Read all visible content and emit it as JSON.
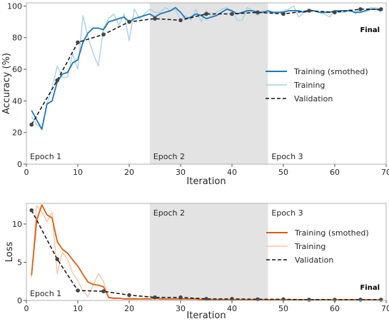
{
  "chart_data": [
    {
      "type": "line",
      "xlabel": "Iteration",
      "ylabel": "Accuracy (%)",
      "xlim": [
        0,
        70
      ],
      "ylim": [
        0,
        102
      ],
      "xticks": [
        "0",
        "10",
        "20",
        "30",
        "40",
        "50",
        "60",
        "70"
      ],
      "yticks": [
        "0",
        "20",
        "40",
        "60",
        "80",
        "100"
      ],
      "grid": false,
      "legend_position": "center-right",
      "epoch_bands": [
        {
          "label": "Epoch 1",
          "start": 0,
          "end": 24,
          "shaded": false
        },
        {
          "label": "Epoch 2",
          "start": 24,
          "end": 47,
          "shaded": true
        },
        {
          "label": "Epoch 3",
          "start": 47,
          "end": 70,
          "shaded": false
        }
      ],
      "annotation": "Final",
      "series": [
        {
          "name": "Training (smothed)",
          "color": "#1f77b4",
          "style": "solid",
          "x": [
            1,
            2,
            3,
            4,
            5,
            6,
            7,
            8,
            9,
            10,
            11,
            12,
            13,
            14,
            15,
            16,
            17,
            18,
            19,
            20,
            21,
            22,
            23,
            24,
            25,
            26,
            27,
            28,
            29,
            30,
            31,
            32,
            33,
            34,
            35,
            36,
            37,
            38,
            39,
            40,
            41,
            42,
            43,
            44,
            45,
            46,
            47,
            48,
            49,
            50,
            51,
            52,
            53,
            54,
            55,
            56,
            57,
            58,
            59,
            60,
            61,
            62,
            63,
            64,
            65,
            66,
            67,
            68,
            69
          ],
          "y": [
            34,
            28,
            22,
            38,
            40,
            52,
            57,
            58,
            64,
            66,
            77,
            83,
            86,
            86,
            85,
            90,
            91,
            92,
            93,
            90,
            92,
            93,
            94,
            95,
            93,
            95,
            96,
            97,
            99,
            96,
            92,
            93,
            95,
            94,
            92,
            93,
            94,
            96,
            98,
            97,
            95,
            96,
            97,
            97,
            96,
            96,
            97,
            96,
            96,
            96,
            97,
            97,
            97,
            96,
            97,
            97,
            96,
            96,
            96,
            97,
            97,
            97,
            97,
            96,
            96,
            97,
            98,
            98,
            97
          ]
        },
        {
          "name": "Training",
          "color": "#a6cee3",
          "style": "solid",
          "x": [
            1,
            2,
            3,
            4,
            5,
            6,
            7,
            8,
            9,
            10,
            11,
            12,
            13,
            14,
            15,
            16,
            17,
            18,
            19,
            20,
            21,
            22,
            23,
            24,
            25,
            26,
            27,
            28,
            29,
            30,
            31,
            32,
            33,
            34,
            35,
            36,
            37,
            38,
            39,
            40,
            41,
            42,
            43,
            44,
            45,
            46,
            47,
            48,
            49,
            50,
            51,
            52,
            53,
            54,
            55,
            56,
            57,
            58,
            59,
            60,
            61,
            62,
            63,
            64,
            65,
            66,
            67,
            68,
            69
          ],
          "y": [
            30,
            25,
            23,
            38,
            48,
            62,
            55,
            55,
            70,
            60,
            94,
            80,
            70,
            62,
            86,
            92,
            95,
            88,
            95,
            78,
            98,
            92,
            95,
            98,
            96,
            96,
            99,
            97,
            98,
            91,
            94,
            91,
            98,
            90,
            97,
            93,
            96,
            98,
            99,
            97,
            91,
            91,
            99,
            97,
            94,
            97,
            96,
            96,
            96,
            97,
            98,
            100,
            93,
            96,
            98,
            97,
            96,
            95,
            93,
            97,
            96,
            96,
            98,
            95,
            99,
            97,
            99,
            99,
            96
          ]
        },
        {
          "name": "Validation",
          "color": "#111111",
          "style": "dashed",
          "markers": true,
          "x": [
            1,
            6,
            10,
            15,
            20,
            25,
            30,
            35,
            40,
            45,
            50,
            55,
            60,
            65,
            69
          ],
          "y": [
            25,
            53,
            77,
            82,
            90,
            92,
            91,
            95,
            95,
            96,
            95,
            97,
            96,
            98,
            98
          ]
        }
      ]
    },
    {
      "type": "line",
      "xlabel": "Iteration",
      "ylabel": "Loss",
      "xlim": [
        0,
        70
      ],
      "ylim": [
        0,
        12.7
      ],
      "xticks": [
        "0",
        "10",
        "20",
        "30",
        "40",
        "50",
        "60",
        "70"
      ],
      "yticks": [
        "0",
        "5",
        "10"
      ],
      "grid": false,
      "legend_position": "center-right",
      "epoch_bands": [
        {
          "label": "Epoch 1",
          "start": 0,
          "end": 24,
          "shaded": false
        },
        {
          "label": "Epoch 2",
          "start": 24,
          "end": 47,
          "shaded": true
        },
        {
          "label": "Epoch 3",
          "start": 47,
          "end": 70,
          "shaded": false
        }
      ],
      "annotation": "Final",
      "series": [
        {
          "name": "Training (smothed)",
          "color": "#d95f0e",
          "style": "solid",
          "x": [
            1,
            2,
            3,
            4,
            5,
            6,
            7,
            8,
            9,
            10,
            11,
            12,
            13,
            14,
            15,
            16,
            17,
            18,
            19,
            20,
            21,
            22,
            23,
            24,
            25,
            26,
            27,
            28,
            29,
            30,
            31,
            32,
            33,
            34,
            35,
            36,
            37,
            38,
            39,
            40,
            41,
            42,
            43,
            44,
            45,
            46,
            47,
            48,
            49,
            50,
            51,
            52,
            53,
            54,
            55,
            56,
            57,
            58,
            59,
            60,
            61,
            62,
            63,
            64,
            65,
            66,
            67,
            68,
            69
          ],
          "y": [
            3.3,
            10.5,
            12.5,
            11.2,
            10.8,
            7.7,
            6.7,
            6.2,
            5.3,
            4.5,
            3.4,
            2.4,
            2.1,
            2.0,
            1.8,
            0.4,
            0.3,
            0.3,
            0.2,
            0.2,
            0.2,
            0.2,
            0.2,
            0.2,
            0.3,
            0.2,
            0.2,
            0.2,
            0.2,
            0.2,
            0.2,
            0.2,
            0.2,
            0.1,
            0.1,
            0.1,
            0.1,
            0.1,
            0.1,
            0.1,
            0.1,
            0.1,
            0.1,
            0.1,
            0.1,
            0.1,
            0.1,
            0.1,
            0.1,
            0.1,
            0.1,
            0.1,
            0.1,
            0.1,
            0.1,
            0.1,
            0.1,
            0.1,
            0.1,
            0.1,
            0.1,
            0.1,
            0.1,
            0.1,
            0.1,
            0.1,
            0.1,
            0.1,
            0.1
          ]
        },
        {
          "name": "Training",
          "color": "#fdbfa8",
          "style": "solid",
          "x": [
            1,
            2,
            3,
            4,
            5,
            6,
            7,
            8,
            9,
            10,
            11,
            12,
            13,
            14,
            15,
            16,
            17,
            18,
            19,
            20,
            21,
            22,
            23,
            24,
            25,
            26,
            27,
            28,
            29,
            30,
            31,
            32,
            33,
            34,
            35,
            36,
            37,
            38,
            39,
            40,
            41,
            42,
            43,
            44,
            45,
            46,
            47,
            48,
            49,
            50,
            51,
            52,
            53,
            54,
            55,
            56,
            57,
            58,
            59,
            60,
            61,
            62,
            63,
            64,
            65,
            66,
            67,
            68,
            69
          ],
          "y": [
            3.0,
            12.4,
            11.6,
            10.3,
            11.5,
            3.5,
            6.3,
            5.4,
            3.6,
            2.6,
            1.2,
            0.5,
            2.0,
            3.5,
            2.5,
            0.3,
            0.2,
            0.3,
            0.2,
            0.4,
            0.3,
            0.2,
            0.3,
            0.5,
            0.4,
            0.3,
            0.2,
            0.2,
            0.2,
            0.3,
            0.2,
            0.2,
            0.2,
            0.3,
            0.2,
            0.2,
            0.2,
            0.1,
            0.1,
            0.1,
            0.2,
            0.1,
            0.1,
            0.1,
            0.2,
            0.1,
            0.1,
            0.1,
            0.1,
            0.2,
            0.1,
            0.1,
            0.1,
            0.1,
            0.1,
            0.1,
            0.1,
            0.1,
            0.1,
            0.1,
            0.1,
            0.1,
            0.1,
            0.1,
            0.1,
            0.1,
            0.1,
            0.1,
            0.1
          ]
        },
        {
          "name": "Validation",
          "color": "#111111",
          "style": "dashed",
          "markers": true,
          "x": [
            1,
            6,
            10,
            15,
            20,
            25,
            30,
            35,
            40,
            45,
            50,
            55,
            60,
            65,
            69
          ],
          "y": [
            11.8,
            5.4,
            1.3,
            1.2,
            0.7,
            0.4,
            0.4,
            0.2,
            0.2,
            0.15,
            0.15,
            0.1,
            0.1,
            0.1,
            0.1
          ]
        }
      ]
    }
  ]
}
